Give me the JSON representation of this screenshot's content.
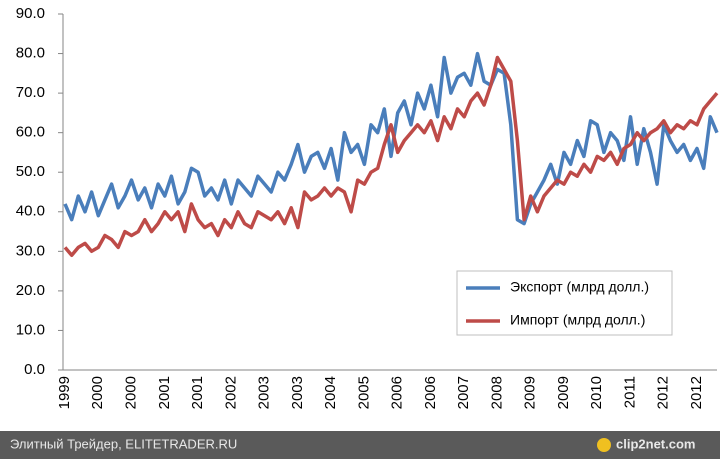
{
  "chart_data": {
    "type": "line",
    "categories": [
      "1999",
      null,
      null,
      null,
      null,
      "2000",
      null,
      null,
      null,
      null,
      "2000",
      null,
      null,
      null,
      null,
      "2001",
      null,
      null,
      null,
      null,
      "2001",
      null,
      null,
      null,
      null,
      "2002",
      null,
      null,
      null,
      null,
      "2003",
      null,
      null,
      null,
      null,
      "2003",
      null,
      null,
      null,
      null,
      "2004",
      null,
      null,
      null,
      null,
      "2005",
      null,
      null,
      null,
      null,
      "2006",
      null,
      null,
      null,
      null,
      "2006",
      null,
      null,
      null,
      null,
      "2007",
      null,
      null,
      null,
      null,
      "2008",
      null,
      null,
      null,
      null,
      "2009",
      null,
      null,
      null,
      null,
      "2009",
      null,
      null,
      null,
      null,
      "2010",
      null,
      null,
      null,
      null,
      "2011",
      null,
      null,
      null,
      null,
      "2012",
      null,
      null,
      null,
      null,
      "2012",
      null,
      null,
      null
    ],
    "series": [
      {
        "name": "Экспорт (млрд долл.)",
        "color": "#4a7ebb",
        "values": [
          42,
          38,
          44,
          40,
          45,
          39,
          43,
          47,
          41,
          44,
          48,
          43,
          46,
          41,
          47,
          44,
          49,
          42,
          45,
          51,
          50,
          44,
          46,
          43,
          48,
          42,
          48,
          46,
          44,
          49,
          47,
          45,
          50,
          48,
          52,
          57,
          50,
          54,
          55,
          51,
          56,
          48,
          60,
          55,
          57,
          52,
          62,
          60,
          66,
          54,
          65,
          68,
          62,
          70,
          66,
          72,
          64,
          79,
          70,
          74,
          75,
          72,
          80,
          73,
          72,
          76,
          75,
          62,
          38,
          37,
          42,
          45,
          48,
          52,
          47,
          55,
          52,
          58,
          54,
          63,
          62,
          55,
          60,
          58,
          53,
          64,
          52,
          61,
          55,
          47,
          62,
          58,
          55,
          57,
          53,
          56,
          51,
          64,
          60
        ]
      },
      {
        "name": "Импорт (млрд долл.)",
        "color": "#be4b48",
        "values": [
          31,
          29,
          31,
          32,
          30,
          31,
          34,
          33,
          31,
          35,
          34,
          35,
          38,
          35,
          37,
          40,
          38,
          40,
          35,
          42,
          38,
          36,
          37,
          34,
          38,
          36,
          40,
          37,
          36,
          40,
          39,
          38,
          40,
          37,
          41,
          36,
          45,
          43,
          44,
          46,
          44,
          46,
          45,
          40,
          48,
          47,
          50,
          51,
          57,
          62,
          55,
          58,
          60,
          62,
          60,
          63,
          58,
          64,
          61,
          66,
          64,
          68,
          70,
          67,
          72,
          79,
          76,
          73,
          58,
          38,
          44,
          40,
          44,
          46,
          48,
          47,
          50,
          49,
          52,
          50,
          54,
          53,
          55,
          52,
          56,
          57,
          60,
          58,
          60,
          61,
          63,
          60,
          62,
          61,
          63,
          62,
          66,
          68,
          70
        ]
      }
    ],
    "ylim": [
      0,
      90
    ],
    "yticks": [
      {
        "value": 0,
        "label": "0.0"
      },
      {
        "value": 10,
        "label": "10.0"
      },
      {
        "value": 20,
        "label": "20.0"
      },
      {
        "value": 30,
        "label": "30.0"
      },
      {
        "value": 40,
        "label": "40.0"
      },
      {
        "value": 50,
        "label": "50.0"
      },
      {
        "value": 60,
        "label": "60.0"
      },
      {
        "value": 70,
        "label": "70.0"
      },
      {
        "value": 80,
        "label": "80.0"
      },
      {
        "value": 90,
        "label": "90.0"
      }
    ],
    "grid": false
  },
  "footer": {
    "left": "Элитный Трейдер, ELITETRADER.RU",
    "right": "clip2net.com"
  }
}
